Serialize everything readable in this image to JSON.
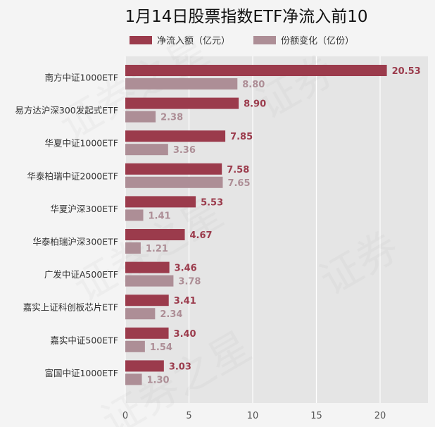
{
  "chart_data": {
    "type": "bar",
    "orientation": "horizontal",
    "title": "1月14日股票指数ETF净流入前10",
    "categories": [
      "南方中证1000ETF",
      "易方达沪深300发起式ETF",
      "华夏中证1000ETF",
      "华泰柏瑞中证2000ETF",
      "华夏沪深300ETF",
      "华泰柏瑞沪深300ETF",
      "广发中证A500ETF",
      "嘉实上证科创板芯片ETF",
      "嘉实中证500ETF",
      "富国中证1000ETF"
    ],
    "series": [
      {
        "name": "净流入额（亿元）",
        "color": "#9b3b4c",
        "values": [
          20.53,
          8.9,
          7.85,
          7.58,
          5.53,
          4.67,
          3.46,
          3.41,
          3.4,
          3.03
        ],
        "labels": [
          "20.53",
          "8.90",
          "7.85",
          "7.58",
          "5.53",
          "4.67",
          "3.46",
          "3.41",
          "3.40",
          "3.03"
        ]
      },
      {
        "name": "份额变化（亿份）",
        "color": "#ad8e96",
        "values": [
          8.8,
          2.38,
          3.36,
          7.65,
          1.41,
          1.21,
          3.78,
          2.34,
          1.54,
          1.3
        ],
        "labels": [
          "8.80",
          "2.38",
          "3.36",
          "7.65",
          "1.41",
          "1.21",
          "3.78",
          "2.34",
          "1.54",
          "1.30"
        ]
      }
    ],
    "xlim": [
      0,
      23.5
    ],
    "xticks": [
      "0",
      "5",
      "10",
      "15",
      "20"
    ],
    "grid": true,
    "legend_position": "top-center"
  }
}
